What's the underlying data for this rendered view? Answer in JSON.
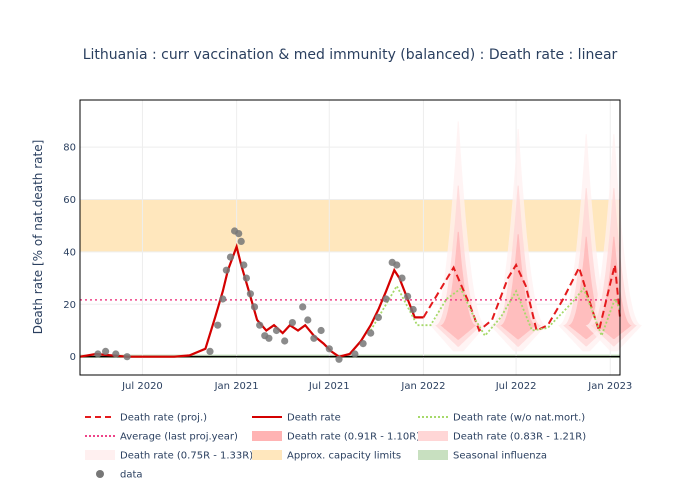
{
  "chart_data": {
    "type": "line",
    "title": "Lithuania : curr vaccination & med immunity (balanced) : Death rate : linear",
    "ylabel": "Death rate [% of nat.death rate]",
    "xlabel": "",
    "x_range": [
      "2020-03-01",
      "2023-01-20"
    ],
    "ylim": [
      -7,
      98
    ],
    "x_ticks": [
      {
        "date": "2020-07-01",
        "label": "Jul 2020"
      },
      {
        "date": "2021-01-01",
        "label": "Jan 2021"
      },
      {
        "date": "2021-07-01",
        "label": "Jul 2021"
      },
      {
        "date": "2022-01-01",
        "label": "Jan 2022"
      },
      {
        "date": "2022-07-01",
        "label": "Jul 2022"
      },
      {
        "date": "2023-01-01",
        "label": "Jan 2023"
      }
    ],
    "y_ticks": [
      0,
      20,
      40,
      60,
      80
    ],
    "grid": true,
    "legend_placement": "bottom",
    "bands": {
      "capacity": {
        "y_from": 40,
        "y_to": 60,
        "color": "#ffe7bd"
      },
      "influenza": {
        "y_from": -0.5,
        "y_to": 0.8,
        "color": "#c8e0c0"
      }
    },
    "average_last_proj_year": 21.7,
    "colors": {
      "proj": "#e41a1c",
      "death_rate": "#d40000",
      "wo_natmort": "#a6d96a",
      "average": "#ee4488",
      "band_091": "#ffb3b3",
      "band_083": "#ffd6d6",
      "band_075": "#fff0f0",
      "data": "#777777",
      "zero_line": "#000000"
    },
    "series": [
      {
        "name": "Death rate",
        "role": "actual",
        "points": [
          [
            "2020-03-01",
            0
          ],
          [
            "2020-04-01",
            1
          ],
          [
            "2020-05-01",
            0.5
          ],
          [
            "2020-06-01",
            0
          ],
          [
            "2020-07-01",
            0
          ],
          [
            "2020-08-01",
            0
          ],
          [
            "2020-09-01",
            0
          ],
          [
            "2020-10-01",
            0.5
          ],
          [
            "2020-11-01",
            3
          ],
          [
            "2020-11-20",
            15
          ],
          [
            "2020-12-05",
            25
          ],
          [
            "2020-12-15",
            33
          ],
          [
            "2021-01-01",
            42
          ],
          [
            "2021-01-10",
            35
          ],
          [
            "2021-01-25",
            25
          ],
          [
            "2021-02-10",
            14
          ],
          [
            "2021-02-28",
            10
          ],
          [
            "2021-03-15",
            12
          ],
          [
            "2021-04-01",
            9
          ],
          [
            "2021-04-15",
            12
          ],
          [
            "2021-05-01",
            10
          ],
          [
            "2021-05-15",
            12
          ],
          [
            "2021-06-01",
            8
          ],
          [
            "2021-06-20",
            5
          ],
          [
            "2021-07-05",
            2
          ],
          [
            "2021-07-20",
            0
          ],
          [
            "2021-08-10",
            1
          ],
          [
            "2021-09-01",
            6
          ],
          [
            "2021-09-20",
            12
          ],
          [
            "2021-10-05",
            18
          ],
          [
            "2021-10-20",
            25
          ],
          [
            "2021-11-05",
            33
          ],
          [
            "2021-11-15",
            30
          ],
          [
            "2021-12-01",
            22
          ],
          [
            "2021-12-15",
            15
          ],
          [
            "2022-01-01",
            15
          ]
        ]
      },
      {
        "name": "Death rate (proj.)",
        "role": "projection",
        "points": [
          [
            "2022-01-01",
            15
          ],
          [
            "2022-02-01",
            25
          ],
          [
            "2022-03-01",
            34
          ],
          [
            "2022-04-01",
            20
          ],
          [
            "2022-04-20",
            10
          ],
          [
            "2022-05-15",
            14
          ],
          [
            "2022-06-15",
            30
          ],
          [
            "2022-07-01",
            35
          ],
          [
            "2022-07-20",
            27
          ],
          [
            "2022-08-10",
            10
          ],
          [
            "2022-09-01",
            12
          ],
          [
            "2022-10-01",
            22
          ],
          [
            "2022-11-01",
            34
          ],
          [
            "2022-11-20",
            22
          ],
          [
            "2022-12-10",
            10
          ],
          [
            "2023-01-01",
            28
          ],
          [
            "2023-01-10",
            35
          ],
          [
            "2023-01-20",
            15
          ]
        ]
      },
      {
        "name": "Death rate (w/o nat.mort.)",
        "role": "dotted",
        "points": [
          [
            "2021-09-20",
            10
          ],
          [
            "2021-10-20",
            20
          ],
          [
            "2021-11-10",
            27
          ],
          [
            "2021-12-01",
            19
          ],
          [
            "2021-12-20",
            12
          ],
          [
            "2022-01-15",
            12
          ],
          [
            "2022-02-15",
            22
          ],
          [
            "2022-03-15",
            26
          ],
          [
            "2022-04-10",
            15
          ],
          [
            "2022-05-01",
            8
          ],
          [
            "2022-06-01",
            15
          ],
          [
            "2022-07-01",
            25
          ],
          [
            "2022-08-01",
            10
          ],
          [
            "2022-09-01",
            11
          ],
          [
            "2022-10-15",
            20
          ],
          [
            "2022-11-10",
            26
          ],
          [
            "2022-12-15",
            8
          ],
          [
            "2023-01-10",
            22
          ],
          [
            "2023-01-20",
            18
          ]
        ]
      }
    ],
    "projection_peaks": [
      {
        "date": "2022-03-10",
        "band_091": 50,
        "band_083": 68,
        "band_075": 93
      },
      {
        "date": "2022-07-05",
        "band_091": 49,
        "band_083": 68,
        "band_075": 90
      },
      {
        "date": "2022-11-15",
        "band_091": 48,
        "band_083": 67,
        "band_075": 88
      },
      {
        "date": "2023-01-08",
        "band_091": 48,
        "band_083": 67,
        "band_075": 88
      }
    ],
    "data_points_sample": [
      [
        "2020-04-05",
        1
      ],
      [
        "2020-04-20",
        2
      ],
      [
        "2020-05-10",
        1
      ],
      [
        "2020-06-01",
        0
      ],
      [
        "2020-11-10",
        2
      ],
      [
        "2020-11-25",
        12
      ],
      [
        "2020-12-05",
        22
      ],
      [
        "2020-12-12",
        33
      ],
      [
        "2020-12-20",
        38
      ],
      [
        "2020-12-28",
        48
      ],
      [
        "2021-01-05",
        47
      ],
      [
        "2021-01-10",
        44
      ],
      [
        "2021-01-15",
        35
      ],
      [
        "2021-01-20",
        30
      ],
      [
        "2021-01-28",
        24
      ],
      [
        "2021-02-05",
        19
      ],
      [
        "2021-02-15",
        12
      ],
      [
        "2021-02-25",
        8
      ],
      [
        "2021-03-05",
        7
      ],
      [
        "2021-03-20",
        10
      ],
      [
        "2021-04-05",
        6
      ],
      [
        "2021-04-20",
        13
      ],
      [
        "2021-05-10",
        19
      ],
      [
        "2021-05-20",
        14
      ],
      [
        "2021-06-01",
        7
      ],
      [
        "2021-06-15",
        10
      ],
      [
        "2021-07-01",
        3
      ],
      [
        "2021-07-20",
        -1
      ],
      [
        "2021-08-20",
        1
      ],
      [
        "2021-09-05",
        5
      ],
      [
        "2021-09-20",
        9
      ],
      [
        "2021-10-05",
        15
      ],
      [
        "2021-10-20",
        22
      ],
      [
        "2021-11-01",
        36
      ],
      [
        "2021-11-10",
        35
      ],
      [
        "2021-11-20",
        30
      ],
      [
        "2021-12-01",
        23
      ],
      [
        "2021-12-12",
        18
      ]
    ]
  },
  "legend": {
    "items": [
      {
        "label": "Death rate (proj.)",
        "style": "dash",
        "color": "#e41a1c"
      },
      {
        "label": "Death rate",
        "style": "solid",
        "color": "#d40000"
      },
      {
        "label": "Death rate (w/o nat.mort.)",
        "style": "dot",
        "color": "#a6d96a"
      },
      {
        "label": "Average (last proj.year)",
        "style": "dot",
        "color": "#ee4488"
      },
      {
        "label": "Death rate (0.91R - 1.10R)",
        "style": "band",
        "color": "#ffb3b3"
      },
      {
        "label": "Death rate (0.83R - 1.21R)",
        "style": "band",
        "color": "#ffd6d6"
      },
      {
        "label": "Death rate (0.75R - 1.33R)",
        "style": "band",
        "color": "#fff0f0"
      },
      {
        "label": "Approx. capacity limits",
        "style": "band",
        "color": "#ffe7bd"
      },
      {
        "label": "Seasonal influenza",
        "style": "band",
        "color": "#c8e0c0"
      },
      {
        "label": "data",
        "style": "marker",
        "color": "#777777"
      }
    ]
  }
}
